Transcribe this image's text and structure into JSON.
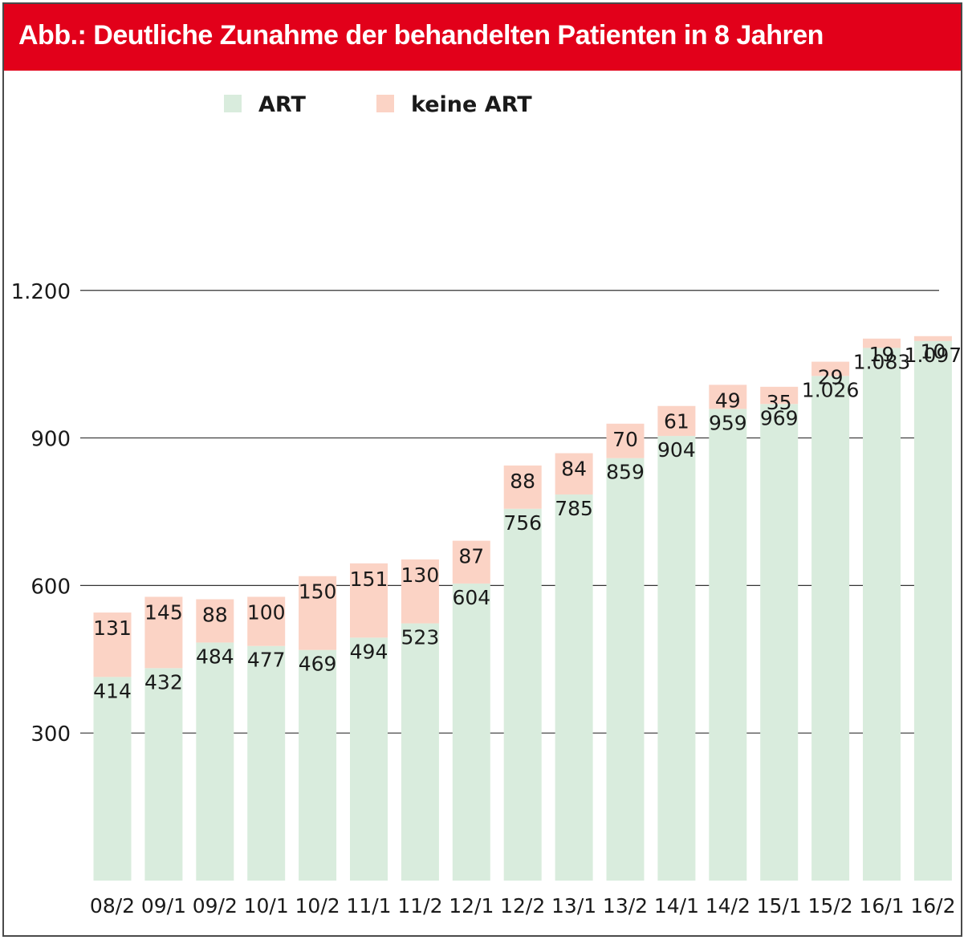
{
  "title": "Abb.: Deutliche Zunahme der behandelten Patienten in 8 Jahren",
  "colors": {
    "title_bg": "#e2001a",
    "art": "#d9ecdd",
    "keine_art": "#fbd3c5",
    "grid": "#333333"
  },
  "chart_data": {
    "type": "bar",
    "stacked": true,
    "title": "Abb.: Deutliche Zunahme der behandelten Patienten in 8 Jahren",
    "categories": [
      "08/2",
      "09/1",
      "09/2",
      "10/1",
      "10/2",
      "11/1",
      "11/2",
      "12/1",
      "12/2",
      "13/1",
      "13/2",
      "14/1",
      "14/2",
      "15/1",
      "15/2",
      "16/1",
      "16/2"
    ],
    "series": [
      {
        "name": "ART",
        "values": [
          414,
          432,
          484,
          477,
          469,
          494,
          523,
          604,
          756,
          785,
          859,
          904,
          959,
          969,
          1026,
          1083,
          1097
        ]
      },
      {
        "name": "keine ART",
        "values": [
          131,
          145,
          88,
          100,
          150,
          151,
          130,
          87,
          88,
          84,
          70,
          61,
          49,
          35,
          29,
          19,
          10
        ]
      }
    ],
    "value_labels": {
      "ART": [
        "414",
        "432",
        "484",
        "477",
        "469",
        "494",
        "523",
        "604",
        "756",
        "785",
        "859",
        "904",
        "959",
        "969",
        "1.026",
        "1.083",
        "1.097"
      ],
      "keine ART": [
        "131",
        "145",
        "88",
        "100",
        "150",
        "151",
        "130",
        "87",
        "88",
        "84",
        "70",
        "61",
        "49",
        "35",
        "29",
        "19",
        "10"
      ]
    },
    "yticks": [
      300,
      600,
      900,
      1200
    ],
    "ytick_labels": [
      "300",
      "600",
      "900",
      "1.200"
    ],
    "grid": true,
    "legend": {
      "position": "top",
      "entries": [
        "ART",
        "keine ART"
      ]
    },
    "xlabel": "",
    "ylabel": ""
  }
}
